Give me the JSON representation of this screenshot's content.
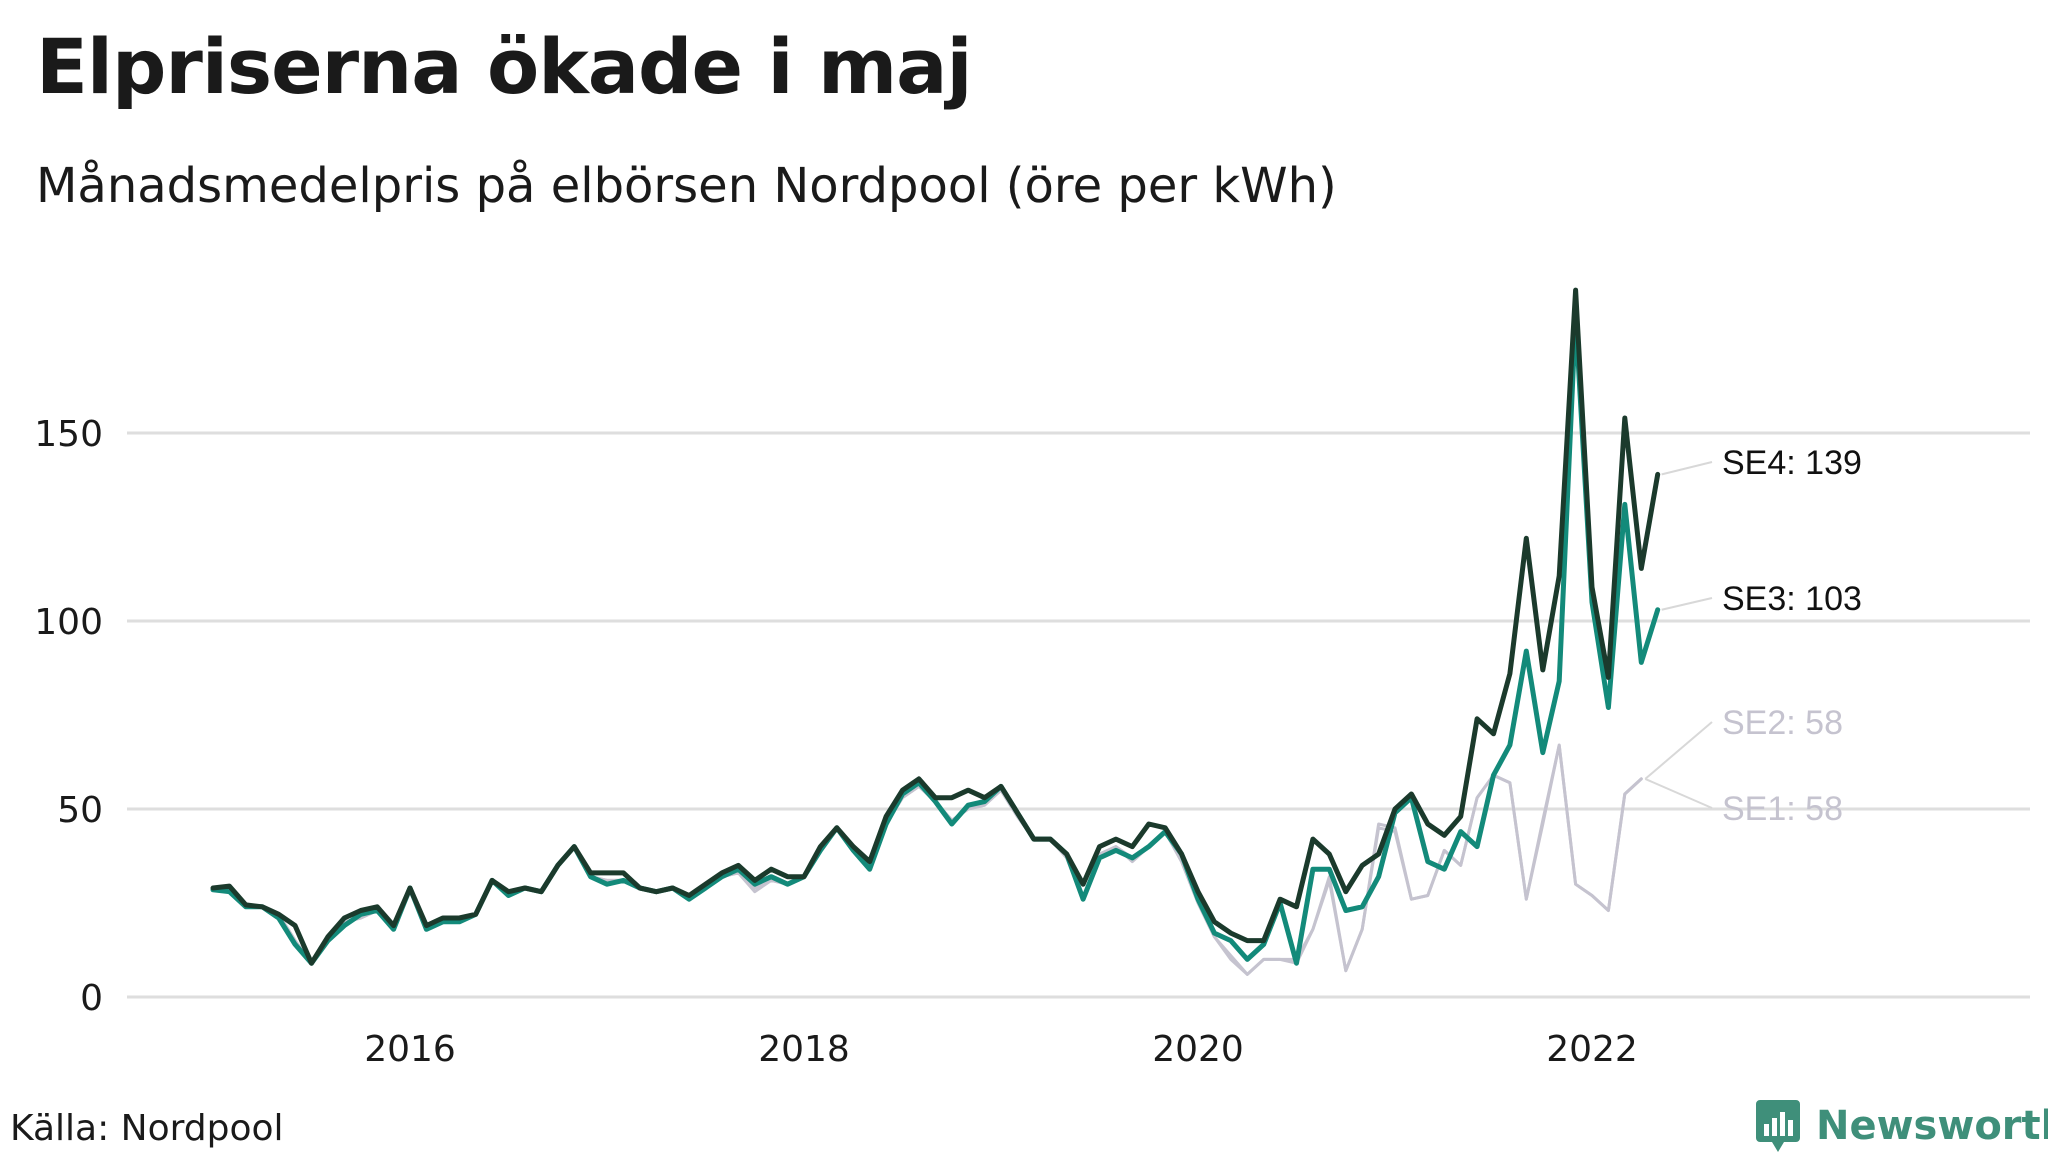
{
  "title": "Elpriserna ökade i maj",
  "subtitle": "Månadsmedelpris på elbörsen Nordpool (öre per kWh)",
  "source": "Källa: Nordpool",
  "brand": {
    "name": "Newsworthy",
    "icon": "newsworthy-logo-icon",
    "color": "#3f8f7a"
  },
  "chart_data": {
    "type": "line",
    "title": "Elpriserna ökade i maj",
    "subtitle": "Månadsmedelpris på elbörsen Nordpool (öre per kWh)",
    "xlabel": "",
    "ylabel": "",
    "x_ticks": [
      "2016",
      "2018",
      "2020",
      "2022"
    ],
    "y_ticks": [
      0,
      50,
      100,
      150
    ],
    "xlim": [
      "2014-10",
      "2024-07"
    ],
    "ylim": [
      0,
      190
    ],
    "grid": "horizontal",
    "x_start": "2015-01",
    "x_interval": "month",
    "series": [
      {
        "name": "SE1",
        "color": "#c5c3cf",
        "end_label": "SE1: 58",
        "values": [
          28.5,
          28.5,
          24,
          24,
          22,
          15,
          9,
          15,
          20,
          21,
          23,
          18,
          28,
          19,
          20,
          20,
          22,
          31,
          28,
          29,
          28,
          35,
          40,
          32,
          31,
          31,
          29,
          28,
          29,
          27,
          30,
          32,
          33,
          28,
          31,
          30,
          32,
          40,
          45,
          39,
          35,
          46,
          53,
          56,
          52,
          47,
          50,
          51,
          55,
          48,
          42,
          42,
          37,
          26,
          38,
          40,
          36,
          40,
          44,
          36,
          25,
          16,
          10,
          6,
          10,
          10,
          9,
          18,
          31,
          7,
          18,
          45,
          44,
          26,
          27,
          39,
          35,
          53,
          59,
          57,
          26,
          46,
          67,
          30,
          27,
          23,
          54,
          58
        ]
      },
      {
        "name": "SE2",
        "color": "#c5c3cf",
        "end_label": "SE2: 58",
        "values": [
          28.5,
          28.5,
          24,
          24,
          22,
          15,
          9,
          15,
          20,
          21,
          23,
          18,
          28,
          19,
          20,
          20,
          22,
          31,
          28,
          29,
          28,
          35,
          40,
          32,
          31,
          31,
          29,
          28,
          29,
          27,
          30,
          32,
          33,
          29,
          31,
          30,
          32,
          40,
          45,
          39,
          35,
          46,
          53,
          56,
          52,
          47,
          50,
          51,
          55,
          48,
          42,
          42,
          37,
          26,
          38,
          40,
          37,
          40,
          44,
          36,
          25,
          16,
          11,
          6,
          10,
          10,
          10,
          18,
          32,
          7,
          18,
          46,
          45,
          26,
          27,
          39,
          35,
          53,
          59,
          57,
          26,
          47,
          67,
          30,
          27,
          23,
          54,
          58
        ]
      },
      {
        "name": "SE3",
        "color": "#138a7a",
        "end_label": "SE3: 103",
        "values": [
          28.5,
          28,
          24,
          24,
          21,
          14,
          9,
          15,
          19,
          22,
          23,
          18,
          29,
          18,
          20,
          20,
          22,
          31,
          27,
          29,
          28,
          35,
          40,
          32,
          30,
          31,
          29,
          28,
          29,
          26,
          29,
          32,
          34,
          30,
          32,
          30,
          32,
          39,
          45,
          39,
          34,
          46,
          54,
          57,
          52,
          46,
          51,
          52,
          56,
          49,
          42,
          42,
          38,
          26,
          37,
          39,
          37,
          40,
          44,
          38,
          26,
          17,
          15,
          10,
          14,
          25,
          9,
          34,
          34,
          23,
          24,
          32,
          49,
          53,
          36,
          34,
          44,
          40,
          59,
          67,
          92,
          65,
          84,
          181,
          105,
          77,
          131,
          89,
          103
        ]
      },
      {
        "name": "SE4",
        "color": "#1b3a2c",
        "end_label": "SE4: 139",
        "values": [
          29,
          29.5,
          24.5,
          24,
          22,
          19,
          9,
          16,
          21,
          23,
          24,
          19,
          29,
          19,
          21,
          21,
          22,
          31,
          28,
          29,
          28,
          35,
          40,
          33,
          33,
          33,
          29,
          28,
          29,
          27,
          30,
          33,
          35,
          31,
          34,
          32,
          32,
          40,
          45,
          40,
          36,
          48,
          55,
          58,
          53,
          53,
          55,
          53,
          56,
          49,
          42,
          42,
          38,
          30,
          40,
          42,
          40,
          46,
          45,
          38,
          28,
          20,
          17,
          15,
          15,
          26,
          24,
          42,
          38,
          28,
          35,
          38,
          50,
          54,
          46,
          43,
          48,
          74,
          70,
          86,
          122,
          87,
          112,
          188,
          109,
          85,
          154,
          114,
          139
        ]
      }
    ]
  }
}
